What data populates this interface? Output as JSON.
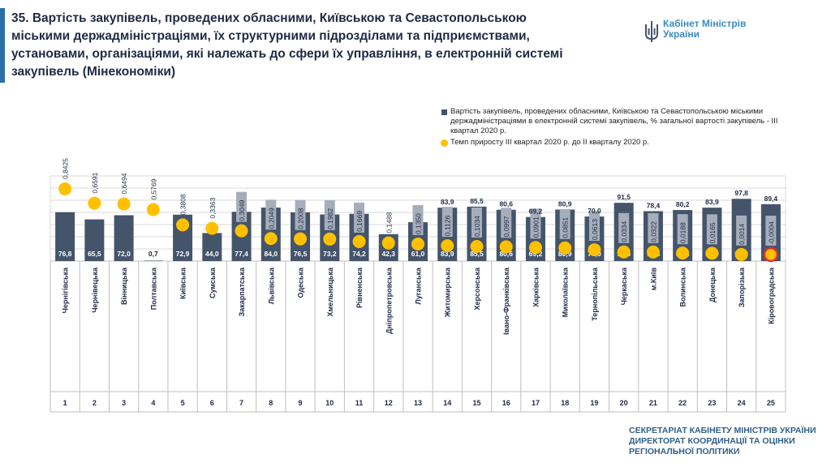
{
  "header": {
    "title": "35. Вартість закупівель, проведених обласними, Київською та Севастопольською міськими держадміністраціями, їх структурними підрозділами та підприємствами, установами, організаціями, які належать до сфери їх управління, в електронній системі закупівель (Мінекономіки)",
    "logo_line1": "Кабінет Міністрів",
    "logo_line2": "України"
  },
  "legend": {
    "bar_label": "Вартість закупівель, проведених обласними, Київською та Севастопольською міськими держадміністраціями в електронній системі закупівель, % загальної вартості закупівель - ІІІ квартал 2020 р.",
    "dot_label": "Темп приросту ІІІ квартал 2020 р. до ІІ кварталу 2020 р."
  },
  "footer": {
    "line1": "СЕКРЕТАРІАТ КАБІНЕТУ МІНІСТРІВ УКРАЇНИ",
    "line2": "ДИРЕКТОРАТ КООРДИНАЦІЇ ТА ОЦІНКИ",
    "line3": "РЕГІОНАЛЬНОЇ ПОЛІТИКИ"
  },
  "colors": {
    "bar": "#44546a",
    "dot": "#ffc000",
    "dot_negative_outline": "#e0312f",
    "grid": "#d9d9d9"
  },
  "chart_data": {
    "type": "bar",
    "categories": [
      "Чернігівська",
      "Чернівецька",
      "Вінницька",
      "Полтавська",
      "Київська",
      "Сумська",
      "Закарпатська",
      "Львівська",
      "Одеська",
      "Хмельницька",
      "Рівненська",
      "Дніпропетровська",
      "Луганська",
      "Житомирська",
      "Херсонська",
      "Івано-Франківська",
      "Харківська",
      "Миколаївська",
      "Тернопільська",
      "Черкаська",
      "м.Київ",
      "Волинська",
      "Донецька",
      "Запорізька",
      "Кіровоградська"
    ],
    "ranks": [
      "1",
      "2",
      "3",
      "4",
      "5",
      "6",
      "7",
      "8",
      "9",
      "10",
      "11",
      "12",
      "13",
      "14",
      "15",
      "16",
      "17",
      "18",
      "19",
      "20",
      "21",
      "22",
      "23",
      "24",
      "25"
    ],
    "series": [
      {
        "name": "Вартість закупівель, проведених обласними, Київською та Севастопольською міськими держадміністраціями в електронній системі закупівель, % загальної вартості закупівель - ІІІ квартал 2020 р.",
        "values": [
          76.8,
          65.5,
          72.0,
          0.7,
          72.9,
          44.0,
          77.4,
          84.0,
          76.5,
          73.2,
          74.2,
          42.3,
          61.0,
          83.9,
          85.5,
          80.6,
          69.2,
          80.9,
          70.0,
          91.5,
          78.4,
          80.2,
          83.9,
          97.8,
          89.4
        ],
        "labels": [
          "76,8",
          "65,5",
          "72,0",
          "0,7",
          "72,9",
          "44,0",
          "77,4",
          "84,0",
          "76,5",
          "73,2",
          "74,2",
          "42,3",
          "61,0",
          "83,9",
          "85,5",
          "80,6",
          "69,2",
          "80,9",
          "70,0",
          "91,5",
          "78,4",
          "80,2",
          "83,9",
          "97,8",
          "89,4"
        ]
      },
      {
        "name": "Темп приросту ІІІ квартал 2020 р. до ІІ кварталу 2020 р.",
        "values": [
          0.8425,
          0.6591,
          0.6494,
          0.5769,
          0.3808,
          0.3363,
          0.3049,
          0.2049,
          0.2008,
          0.1982,
          0.1669,
          0.1488,
          0.135,
          0.1126,
          0.1034,
          0.0997,
          0.0901,
          0.0851,
          0.0613,
          0.0334,
          0.0322,
          0.0188,
          0.0165,
          0.0014,
          -0.0004
        ],
        "labels": [
          "0,8425",
          "0,6591",
          "0,6494",
          "0,5769",
          "0,3808",
          "0,3363",
          "0,3049",
          "0,2049",
          "0,2008",
          "0,1982",
          "0,1669",
          "0,1488",
          "0,1350",
          "0,1126",
          "0,1034",
          "0,0997",
          "0,0901",
          "0,0851",
          "0,0613",
          "0,0334",
          "0,0322",
          "0,0188",
          "0,0165",
          "0,0014",
          "-0,0004"
        ]
      }
    ],
    "bar_ylim": [
      0,
      100
    ],
    "dot_ylim": [
      -0.15,
      1.15
    ],
    "grid": true,
    "legend_position": "top-right"
  }
}
